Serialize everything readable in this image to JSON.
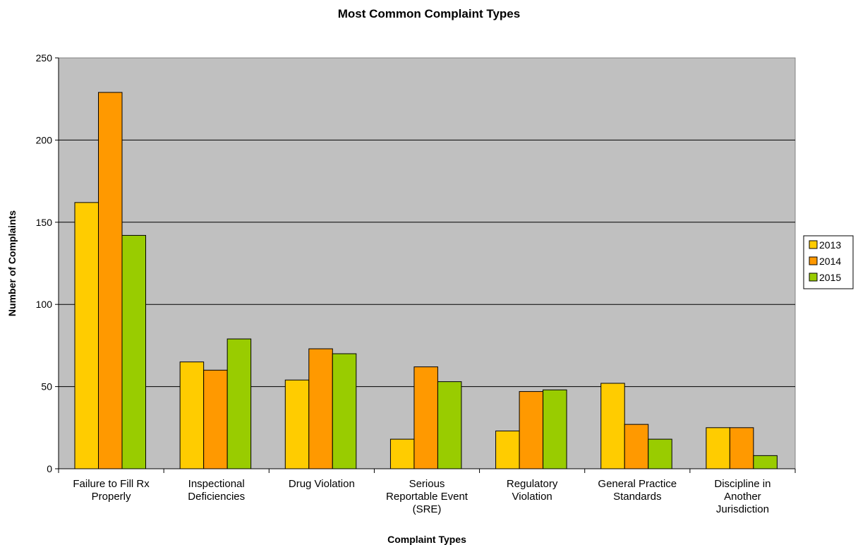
{
  "chart_data": {
    "type": "bar",
    "title": "Most Common Complaint Types",
    "xlabel": "Complaint Types",
    "ylabel": "Number of Complaints",
    "ylim": [
      0,
      250
    ],
    "yticks": [
      0,
      50,
      100,
      150,
      200,
      250
    ],
    "grid": true,
    "legend_position": "right",
    "categories": [
      [
        "Failure to Fill Rx",
        "Properly"
      ],
      [
        "Inspectional",
        "Deficiencies"
      ],
      [
        "Drug Violation"
      ],
      [
        "Serious",
        "Reportable Event",
        "(SRE)"
      ],
      [
        "Regulatory",
        "Violation"
      ],
      [
        "General Practice",
        "Standards"
      ],
      [
        "Discipline in",
        "Another",
        "Jurisdiction"
      ]
    ],
    "series": [
      {
        "name": "2013",
        "color": "#FFCC00",
        "values": [
          162,
          65,
          54,
          18,
          23,
          52,
          25
        ]
      },
      {
        "name": "2014",
        "color": "#FF9900",
        "values": [
          229,
          60,
          73,
          62,
          47,
          27,
          25
        ]
      },
      {
        "name": "2015",
        "color": "#99CC00",
        "values": [
          142,
          79,
          70,
          53,
          48,
          18,
          8
        ]
      }
    ],
    "plot_background": "#C0C0C0"
  }
}
